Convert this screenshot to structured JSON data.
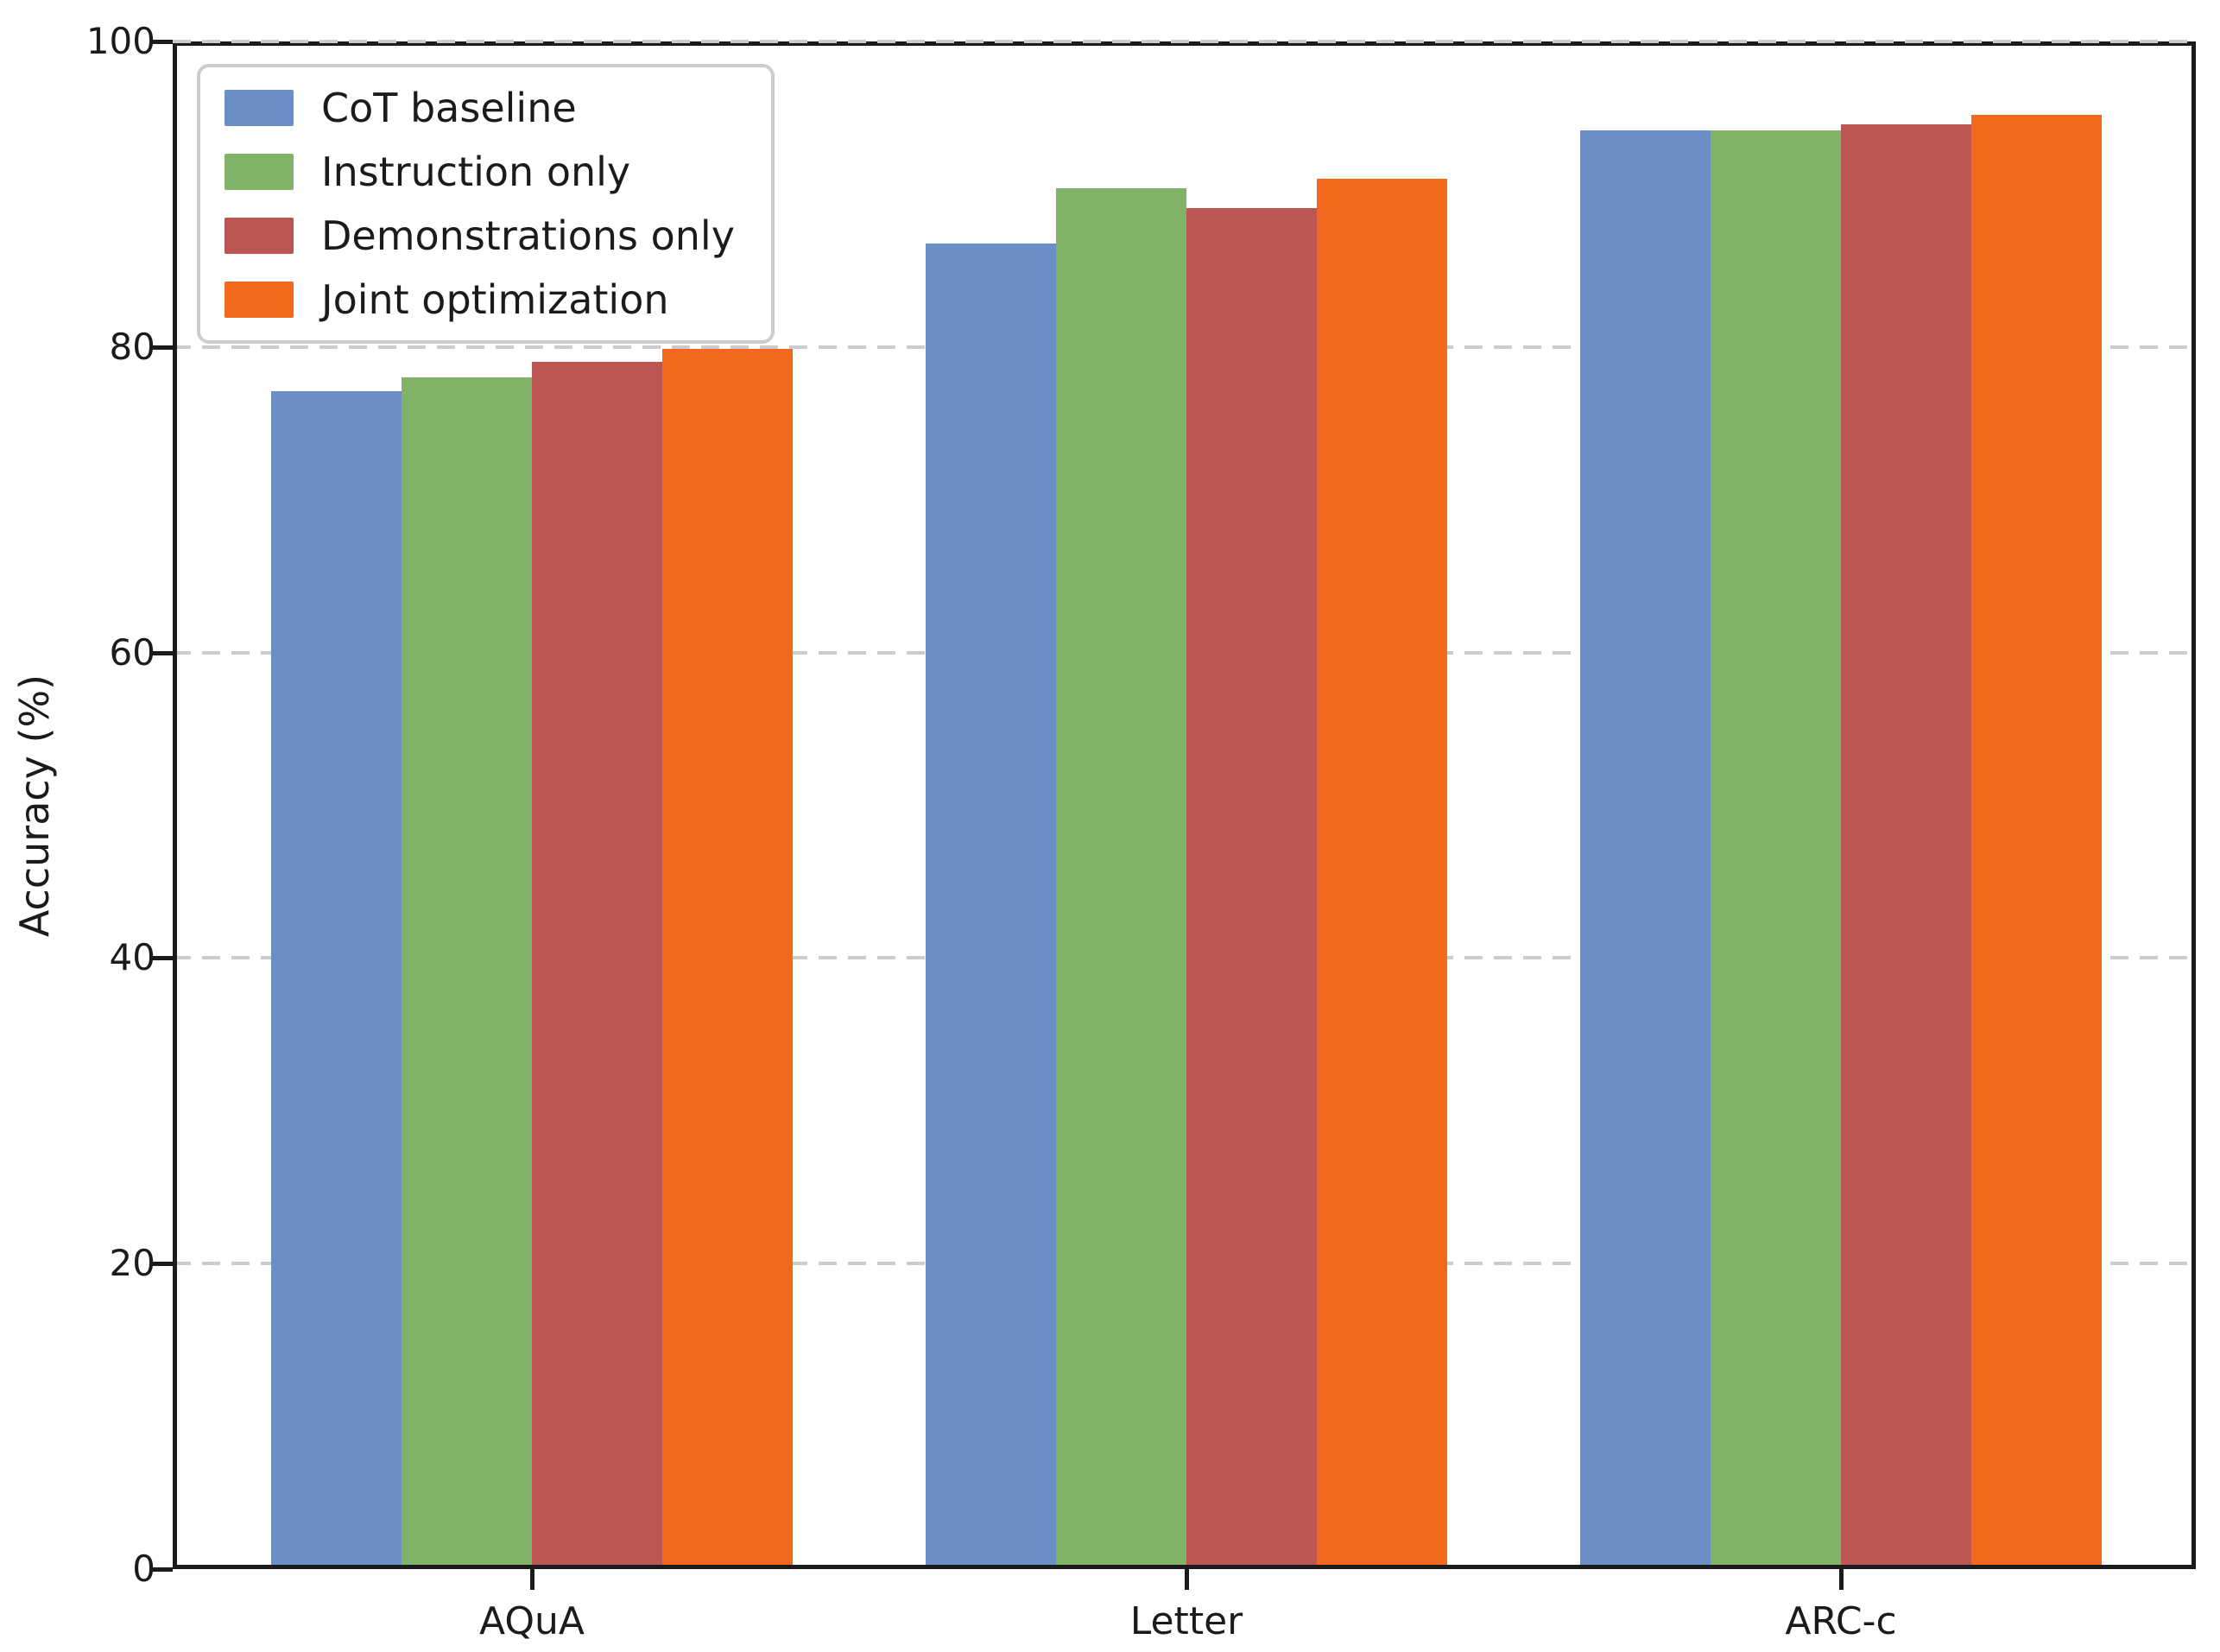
{
  "chart_data": {
    "type": "bar",
    "title": "",
    "xlabel": "",
    "ylabel": "Accuracy (%)",
    "categories": [
      "AQuA",
      "Letter",
      "ARC-c"
    ],
    "series": [
      {
        "name": "CoT baseline",
        "color": "#6B8FC4",
        "values": [
          77.1,
          86.8,
          94.2
        ]
      },
      {
        "name": "Instruction only",
        "color": "#80B367",
        "values": [
          78.0,
          90.4,
          94.2
        ]
      },
      {
        "name": "Demonstrations only",
        "color": "#BB5653",
        "values": [
          79.0,
          89.1,
          94.6
        ]
      },
      {
        "name": "Joint optimization",
        "color": "#F2691E",
        "values": [
          79.9,
          91.0,
          95.2
        ]
      }
    ],
    "ylim": [
      0,
      100
    ],
    "yticks": [
      "0",
      "20",
      "40",
      "60",
      "80",
      "100"
    ],
    "grid": {
      "axis": "y",
      "line_style": "dashed",
      "color": "#CCCCCC",
      "values": [
        20,
        40,
        60,
        80,
        100
      ]
    },
    "legend": {
      "position": "upper-left"
    },
    "axis_color": "#1B1B1B",
    "background": "#FFFFFF"
  }
}
